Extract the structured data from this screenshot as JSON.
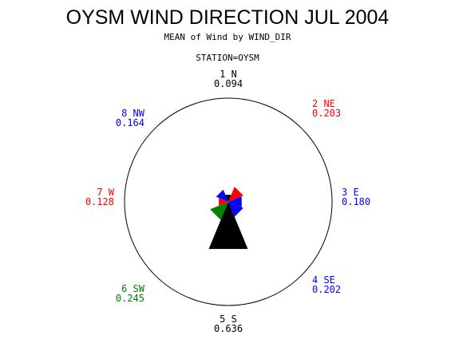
{
  "chart_data": {
    "type": "pie",
    "title": "OYSM WIND DIRECTION JUL 2004",
    "subtitle": "MEAN of Wind by WIND_DIR",
    "group_label": "STATION=OYSM",
    "scale_max": 0.636,
    "directions": [
      {
        "label": "1 N",
        "value": 0.094,
        "value_text": "0.094",
        "color": "#000000"
      },
      {
        "label": "2 NE",
        "value": 0.203,
        "value_text": "0.203",
        "color": "#ff0000"
      },
      {
        "label": "3 E",
        "value": 0.18,
        "value_text": "0.180",
        "color": "#0000ff"
      },
      {
        "label": "4 SE",
        "value": 0.202,
        "value_text": "0.202",
        "color": "#0000ff"
      },
      {
        "label": "5 S",
        "value": 0.636,
        "value_text": "0.636",
        "color": "#000000"
      },
      {
        "label": "6 SW",
        "value": 0.245,
        "value_text": "0.245",
        "color": "#008000"
      },
      {
        "label": "7 W",
        "value": 0.128,
        "value_text": "0.128",
        "color": "#ff0000"
      },
      {
        "label": "8 NW",
        "value": 0.164,
        "value_text": "0.164",
        "color": "#0000ff"
      }
    ]
  }
}
